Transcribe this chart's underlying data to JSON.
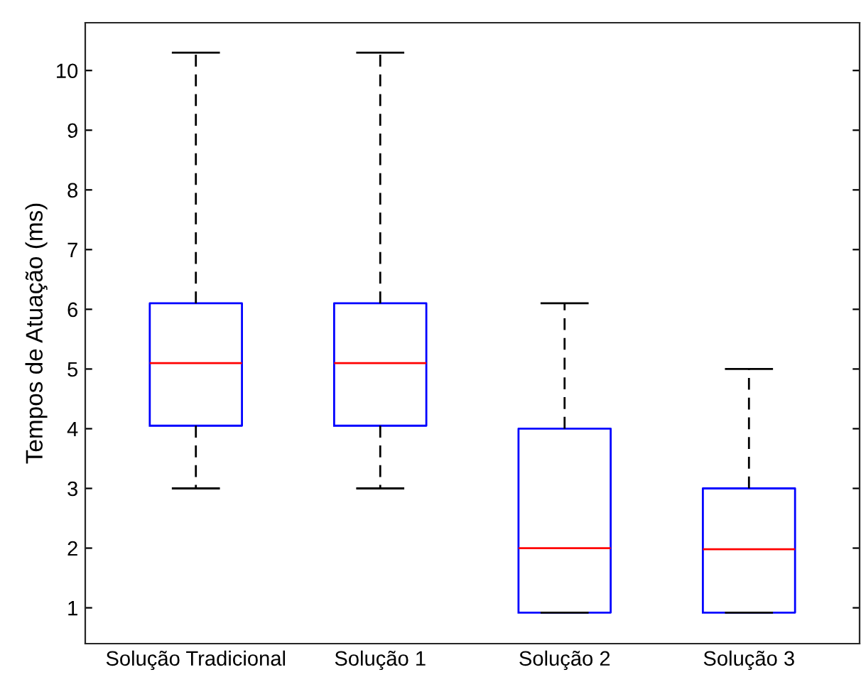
{
  "chart_data": {
    "type": "box",
    "ylabel": "Tempos de Atuação (ms)",
    "categories": [
      "Solução Tradicional",
      "Solução 1",
      "Solução 2",
      "Solução 3"
    ],
    "boxes": [
      {
        "low": 3.0,
        "q1": 4.05,
        "median": 5.1,
        "q3": 6.1,
        "high": 10.3
      },
      {
        "low": 3.0,
        "q1": 4.05,
        "median": 5.1,
        "q3": 6.1,
        "high": 10.3
      },
      {
        "low": 0.92,
        "q1": 0.92,
        "median": 2.0,
        "q3": 4.0,
        "high": 6.1
      },
      {
        "low": 0.92,
        "q1": 0.92,
        "median": 1.98,
        "q3": 3.0,
        "high": 5.0
      }
    ],
    "color": "#0000ff",
    "ylim": [
      0.4,
      10.8
    ],
    "yticks": [
      1,
      2,
      3,
      4,
      5,
      6,
      7,
      8,
      9,
      10
    ],
    "grid": false
  }
}
